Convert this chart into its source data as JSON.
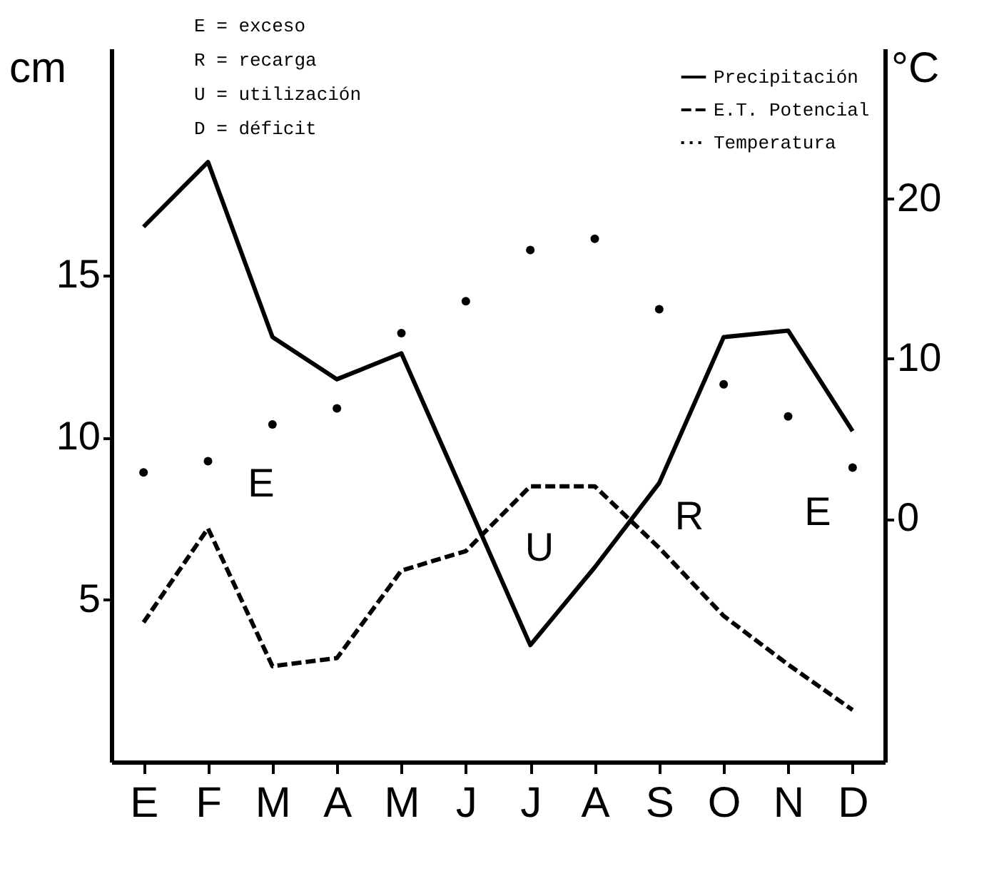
{
  "chart_data": {
    "type": "line",
    "categories": [
      "E",
      "F",
      "M",
      "A",
      "M",
      "J",
      "J",
      "A",
      "S",
      "O",
      "N",
      "D"
    ],
    "ylabel": "cm",
    "y2label": "°C",
    "ylim": [
      0,
      22
    ],
    "yticks": [
      5,
      10,
      15
    ],
    "y2lim": [
      -15.2,
      29.4
    ],
    "y2ticks": [
      0,
      10,
      20
    ],
    "series": [
      {
        "name": "Precipitación",
        "type": "line",
        "line_style": "solid",
        "color": "#000000",
        "values": [
          16.5,
          18.5,
          13.1,
          11.8,
          12.6,
          8.1,
          3.6,
          6.0,
          8.6,
          13.1,
          13.3,
          10.2
        ]
      },
      {
        "name": "E.T. Potencial",
        "type": "line",
        "line_style": "dashed",
        "color": "#000000",
        "values": [
          4.3,
          7.2,
          2.95,
          3.2,
          5.9,
          6.5,
          8.5,
          8.5,
          6.6,
          4.5,
          3.0,
          1.6
        ]
      },
      {
        "name": "Temperatura",
        "type": "scatter",
        "marker": "circle",
        "axis": "y2",
        "color": "#000000",
        "values": [
          2.9,
          3.6,
          5.9,
          6.9,
          11.6,
          13.6,
          16.8,
          17.5,
          13.1,
          8.4,
          6.4,
          3.2
        ]
      }
    ],
    "annotations": [
      "E = exceso",
      "R = recarga",
      "U = utilización",
      "D = déficit",
      "E",
      "U",
      "R",
      "E"
    ],
    "legend": "top right",
    "grid": false
  }
}
